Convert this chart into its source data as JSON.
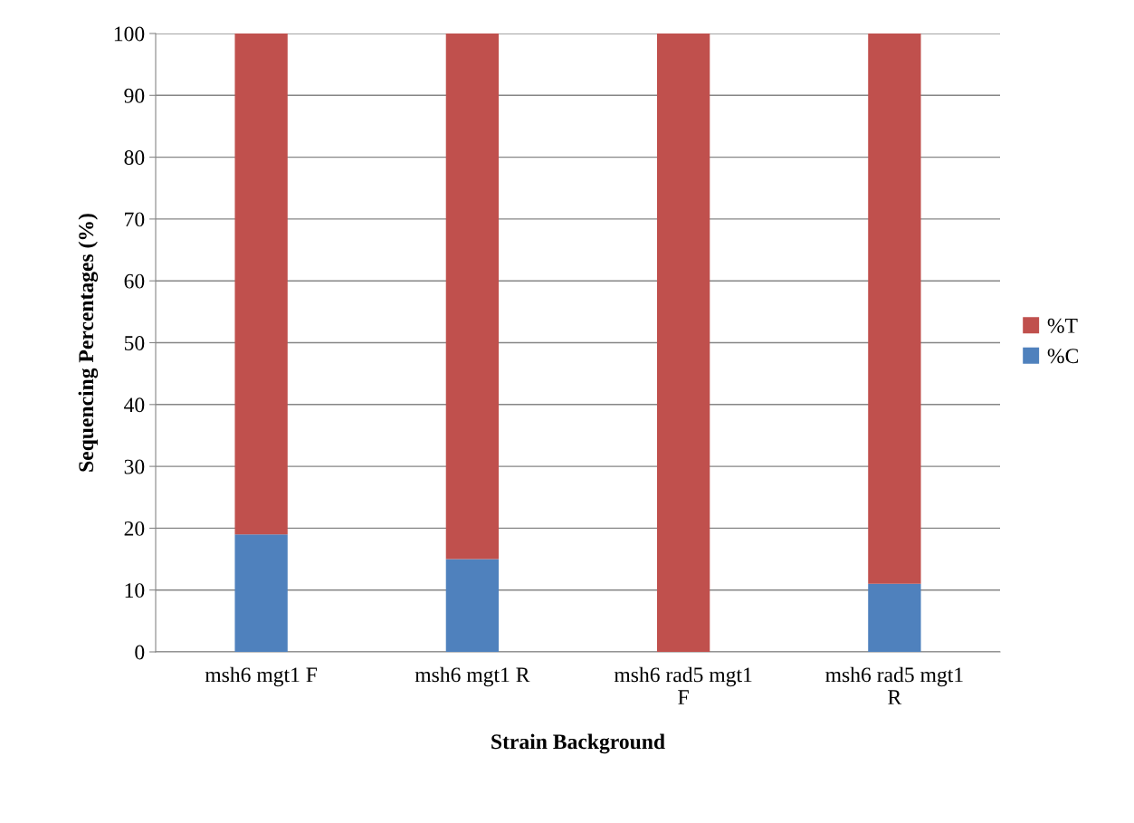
{
  "chart_data": {
    "type": "bar",
    "stacked": true,
    "xlabel": "Strain Background",
    "ylabel": "Sequencing Percentages (%)",
    "categories": [
      "msh6 mgt1 F",
      "msh6 mgt1 R",
      "msh6 rad5 mgt1\nF",
      "msh6 rad5 mgt1\nR"
    ],
    "series": [
      {
        "name": "%C",
        "color": "#4f81bd",
        "values": [
          19,
          15,
          0,
          11
        ]
      },
      {
        "name": "%T",
        "color": "#c0504d",
        "values": [
          81,
          85,
          100,
          89
        ]
      }
    ],
    "ylim": [
      0,
      100
    ],
    "yticks": [
      0,
      10,
      20,
      30,
      40,
      50,
      60,
      70,
      80,
      90,
      100
    ],
    "grid": "y",
    "legend": "right"
  }
}
